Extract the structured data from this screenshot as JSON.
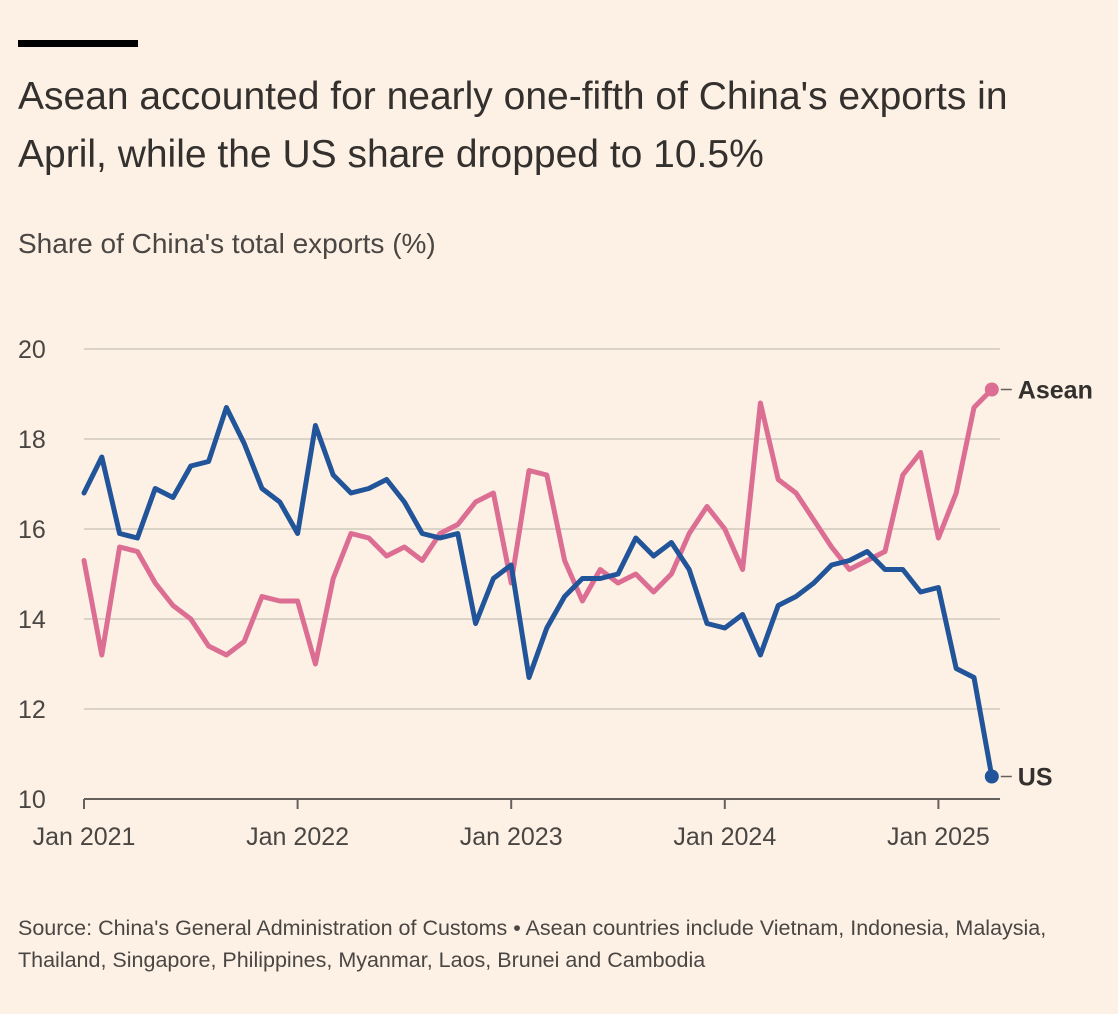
{
  "title": "Asean accounted for nearly one-fifth of China's exports in April, while the US share dropped to 10.5%",
  "subtitle": "Share of China's total exports (%)",
  "source": "Source: China's General Administration of Customs • Asean countries include Vietnam, Indonesia, Malaysia, Thailand, Singapore, Philippines, Myanmar, Laos, Brunei and Cambodia",
  "colors": {
    "background": "#fdf1e5",
    "us": "#22549a",
    "asean": "#dc6e93",
    "grid": "#d2c9bf",
    "text": "#33302e"
  },
  "chart_data": {
    "type": "line",
    "ylabel": "Share of China's total exports (%)",
    "ylim": [
      10,
      20
    ],
    "yticks": [
      "10",
      "12",
      "14",
      "16",
      "18",
      "20"
    ],
    "xticks": [
      "Jan 2021",
      "Jan 2022",
      "Jan 2023",
      "Jan 2024",
      "Jan 2025"
    ],
    "grid": true,
    "legend": "end-of-line labels",
    "x": [
      "2021-01",
      "2021-02",
      "2021-03",
      "2021-04",
      "2021-05",
      "2021-06",
      "2021-07",
      "2021-08",
      "2021-09",
      "2021-10",
      "2021-11",
      "2021-12",
      "2022-01",
      "2022-02",
      "2022-03",
      "2022-04",
      "2022-05",
      "2022-06",
      "2022-07",
      "2022-08",
      "2022-09",
      "2022-10",
      "2022-11",
      "2022-12",
      "2023-01",
      "2023-02",
      "2023-03",
      "2023-04",
      "2023-05",
      "2023-06",
      "2023-07",
      "2023-08",
      "2023-09",
      "2023-10",
      "2023-11",
      "2023-12",
      "2024-01",
      "2024-02",
      "2024-03",
      "2024-04",
      "2024-05",
      "2024-06",
      "2024-07",
      "2024-08",
      "2024-09",
      "2024-10",
      "2024-11",
      "2024-12",
      "2025-01",
      "2025-02",
      "2025-03",
      "2025-04"
    ],
    "series": [
      {
        "name": "Asean",
        "values": [
          15.3,
          13.2,
          15.6,
          15.5,
          14.8,
          14.3,
          14.0,
          13.4,
          13.2,
          13.5,
          14.5,
          14.4,
          14.4,
          13.0,
          14.9,
          15.9,
          15.8,
          15.4,
          15.6,
          15.3,
          15.9,
          16.1,
          16.6,
          16.8,
          14.8,
          17.3,
          17.2,
          15.3,
          14.4,
          15.1,
          14.8,
          15.0,
          14.6,
          15.0,
          15.9,
          16.5,
          16.0,
          15.1,
          18.8,
          17.1,
          16.8,
          16.2,
          15.6,
          15.1,
          15.3,
          15.5,
          17.2,
          17.7,
          15.8,
          16.8,
          18.7,
          19.1
        ]
      },
      {
        "name": "US",
        "values": [
          16.8,
          17.6,
          15.9,
          15.8,
          16.9,
          16.7,
          17.4,
          17.5,
          18.7,
          17.9,
          16.9,
          16.6,
          15.9,
          18.3,
          17.2,
          16.8,
          16.9,
          17.1,
          16.6,
          15.9,
          15.8,
          15.9,
          13.9,
          14.9,
          15.2,
          12.7,
          13.8,
          14.5,
          14.9,
          14.9,
          15.0,
          15.8,
          15.4,
          15.7,
          15.1,
          13.9,
          13.8,
          14.1,
          13.2,
          14.3,
          14.5,
          14.8,
          15.2,
          15.3,
          15.5,
          15.1,
          15.1,
          14.6,
          14.7,
          12.9,
          12.7,
          10.5
        ]
      }
    ]
  }
}
